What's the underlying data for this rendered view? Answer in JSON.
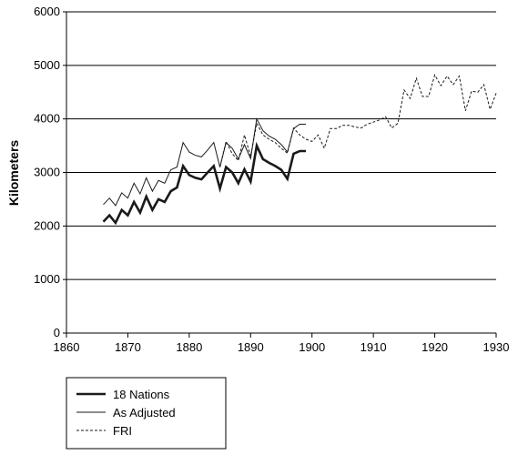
{
  "chart_data": {
    "type": "line",
    "title": "",
    "xlabel": "",
    "ylabel": "Kilometers",
    "xlim": [
      1860,
      1930
    ],
    "ylim": [
      0,
      6000
    ],
    "x_ticks": [
      "1860",
      "1870",
      "1880",
      "1890",
      "1900",
      "1910",
      "1920",
      "1930"
    ],
    "y_ticks": [
      "0",
      "1000",
      "2000",
      "3000",
      "4000",
      "5000",
      "6000"
    ],
    "grid": "horizontal",
    "legend_position": "bottom-left",
    "series": [
      {
        "name": "18 Nations",
        "style": "solid-thick",
        "color": "#1a1a1a",
        "x": [
          1866,
          1867,
          1868,
          1869,
          1870,
          1871,
          1872,
          1873,
          1874,
          1875,
          1876,
          1877,
          1878,
          1879,
          1880,
          1881,
          1882,
          1883,
          1884,
          1885,
          1886,
          1887,
          1888,
          1889,
          1890,
          1891,
          1892,
          1893,
          1894,
          1895,
          1896,
          1897,
          1898,
          1899
        ],
        "y": [
          2080,
          2200,
          2060,
          2300,
          2200,
          2450,
          2250,
          2550,
          2300,
          2500,
          2450,
          2650,
          2720,
          3120,
          2950,
          2900,
          2870,
          3000,
          3120,
          2700,
          3100,
          3000,
          2800,
          3060,
          2830,
          3500,
          3250,
          3180,
          3120,
          3050,
          2880,
          3350,
          3400,
          3400
        ]
      },
      {
        "name": "As Adjusted",
        "style": "solid-thin",
        "color": "#1a1a1a",
        "x": [
          1866,
          1867,
          1868,
          1869,
          1870,
          1871,
          1872,
          1873,
          1874,
          1875,
          1876,
          1877,
          1878,
          1879,
          1880,
          1881,
          1882,
          1883,
          1884,
          1885,
          1886,
          1887,
          1888,
          1889,
          1890,
          1891,
          1892,
          1893,
          1894,
          1895,
          1896,
          1897,
          1898,
          1899
        ],
        "y": [
          2400,
          2520,
          2380,
          2620,
          2520,
          2800,
          2600,
          2900,
          2650,
          2850,
          2800,
          3050,
          3100,
          3560,
          3380,
          3320,
          3290,
          3420,
          3560,
          3100,
          3560,
          3450,
          3250,
          3520,
          3260,
          4000,
          3780,
          3680,
          3620,
          3520,
          3380,
          3820,
          3900,
          3900
        ]
      },
      {
        "name": "FRI",
        "style": "dashed",
        "color": "#1a1a1a",
        "x": [
          1885,
          1886,
          1887,
          1888,
          1889,
          1890,
          1891,
          1892,
          1893,
          1894,
          1895,
          1896,
          1897,
          1898,
          1899,
          1900,
          1901,
          1902,
          1903,
          1904,
          1905,
          1906,
          1907,
          1908,
          1909,
          1910,
          1911,
          1912,
          1913,
          1914,
          1915,
          1916,
          1917,
          1918,
          1919,
          1920,
          1921,
          1922,
          1923,
          1924,
          1925,
          1926,
          1927,
          1928,
          1929,
          1930
        ],
        "y": [
          3100,
          3580,
          3350,
          3220,
          3700,
          3300,
          3920,
          3700,
          3620,
          3560,
          3450,
          3360,
          3830,
          3700,
          3620,
          3580,
          3700,
          3450,
          3820,
          3820,
          3880,
          3880,
          3850,
          3830,
          3900,
          3940,
          3980,
          4040,
          3830,
          3920,
          4540,
          4380,
          4760,
          4420,
          4420,
          4820,
          4620,
          4800,
          4640,
          4800,
          4150,
          4520,
          4500,
          4640,
          4180,
          4480
        ]
      }
    ]
  }
}
